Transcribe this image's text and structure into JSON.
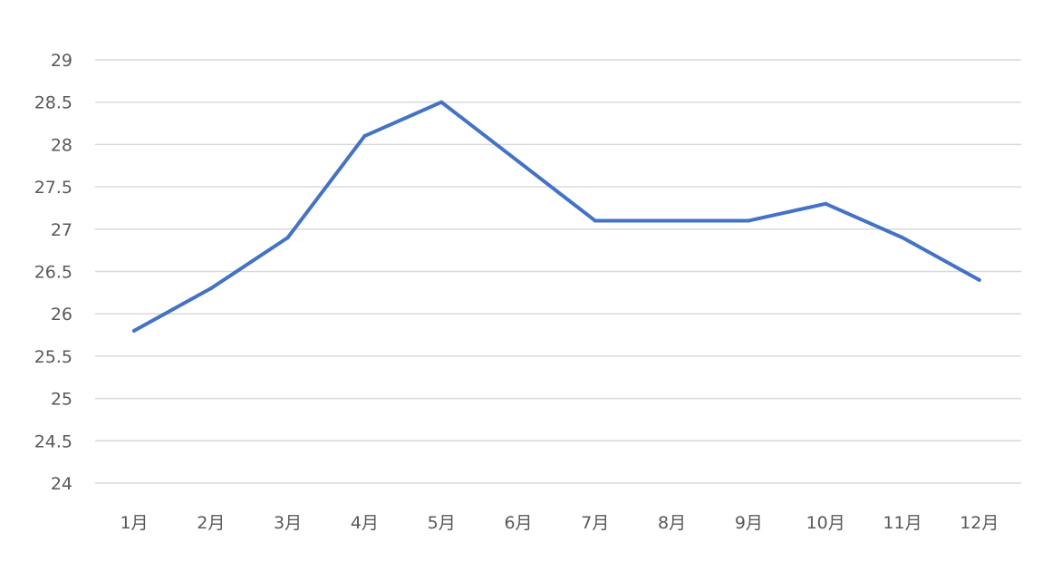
{
  "chart_data": {
    "type": "line",
    "title": "",
    "xlabel": "",
    "ylabel": "",
    "categories": [
      "1月",
      "2月",
      "3月",
      "4月",
      "5月",
      "6月",
      "7月",
      "8月",
      "9月",
      "10月",
      "11月",
      "12月"
    ],
    "series": [
      {
        "values": [
          25.8,
          26.3,
          26.9,
          28.1,
          28.5,
          27.8,
          27.1,
          27.1,
          27.1,
          27.3,
          26.9,
          26.4
        ],
        "color": "#4472c4"
      }
    ],
    "ylim": [
      24,
      29
    ],
    "y_ticks": [
      "24",
      "24.5",
      "25",
      "25.5",
      "26",
      "26.5",
      "27",
      "27.5",
      "28",
      "28.5",
      "29"
    ],
    "grid": true,
    "legend": "none"
  }
}
